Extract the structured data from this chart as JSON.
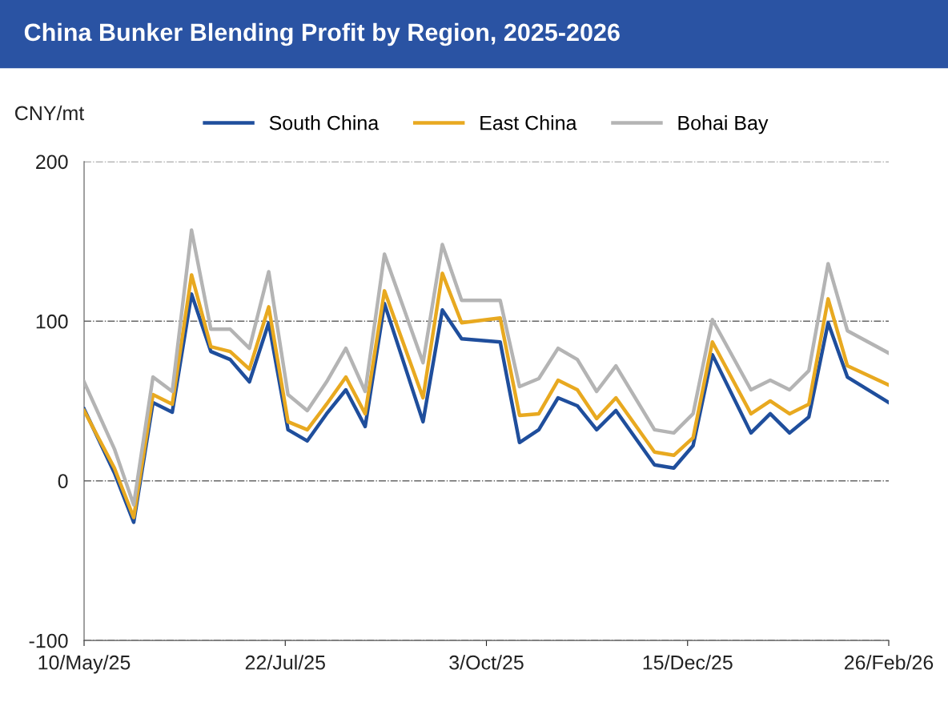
{
  "chart_data": {
    "type": "line",
    "title": "China Bunker Blending Profit by Region, 2025-2026",
    "ylabel": "CNY/mt",
    "x": [
      "2025-05-10",
      "2025-05-21",
      "2025-05-28",
      "2025-06-04",
      "2025-06-11",
      "2025-06-18",
      "2025-06-25",
      "2025-07-02",
      "2025-07-09",
      "2025-07-16",
      "2025-07-23",
      "2025-07-30",
      "2025-08-06",
      "2025-08-13",
      "2025-08-20",
      "2025-08-27",
      "2025-09-10",
      "2025-09-17",
      "2025-09-24",
      "2025-10-08",
      "2025-10-15",
      "2025-10-22",
      "2025-10-29",
      "2025-11-05",
      "2025-11-12",
      "2025-11-19",
      "2025-12-03",
      "2025-12-10",
      "2025-12-17",
      "2025-12-24",
      "2026-01-07",
      "2026-01-14",
      "2026-01-21",
      "2026-01-28",
      "2026-02-04",
      "2026-02-11",
      "2026-02-26"
    ],
    "series": [
      {
        "name": "South China",
        "color": "#1f4e9c",
        "values": [
          45,
          5,
          -26,
          49,
          43,
          117,
          81,
          76,
          62,
          99,
          32,
          25,
          42,
          57,
          34,
          111,
          37,
          107,
          89,
          87,
          24,
          32,
          52,
          47,
          32,
          44,
          10,
          8,
          22,
          79,
          30,
          42,
          30,
          40,
          99,
          65,
          49
        ]
      },
      {
        "name": "East China",
        "color": "#e8a920",
        "values": [
          44,
          8,
          -23,
          54,
          48,
          129,
          84,
          81,
          70,
          109,
          37,
          32,
          48,
          65,
          42,
          119,
          52,
          130,
          99,
          102,
          41,
          42,
          63,
          57,
          39,
          52,
          18,
          16,
          27,
          87,
          42,
          50,
          42,
          48,
          114,
          72,
          60
        ]
      },
      {
        "name": "Bohai Bay",
        "color": "#b4b4b4",
        "values": [
          62,
          20,
          -15,
          65,
          56,
          157,
          95,
          95,
          83,
          131,
          54,
          44,
          62,
          83,
          56,
          142,
          74,
          148,
          113,
          113,
          59,
          64,
          83,
          76,
          56,
          72,
          32,
          30,
          42,
          101,
          57,
          63,
          57,
          69,
          136,
          94,
          80
        ]
      }
    ],
    "xlim": [
      "2025-05-10",
      "2026-02-26"
    ],
    "xticks": [
      {
        "value": "2025-05-10",
        "label": "10/May/25"
      },
      {
        "value": "2025-07-22",
        "label": "22/Jul/25"
      },
      {
        "value": "2025-10-03",
        "label": "3/Oct/25"
      },
      {
        "value": "2025-12-15",
        "label": "15/Dec/25"
      },
      {
        "value": "2026-02-26",
        "label": "26/Feb/26"
      }
    ],
    "ylim": [
      -100,
      200
    ],
    "yticks": [
      -100,
      0,
      100,
      200
    ],
    "grid": "y",
    "legend": "top",
    "line_style": "solid",
    "marker": "none"
  }
}
